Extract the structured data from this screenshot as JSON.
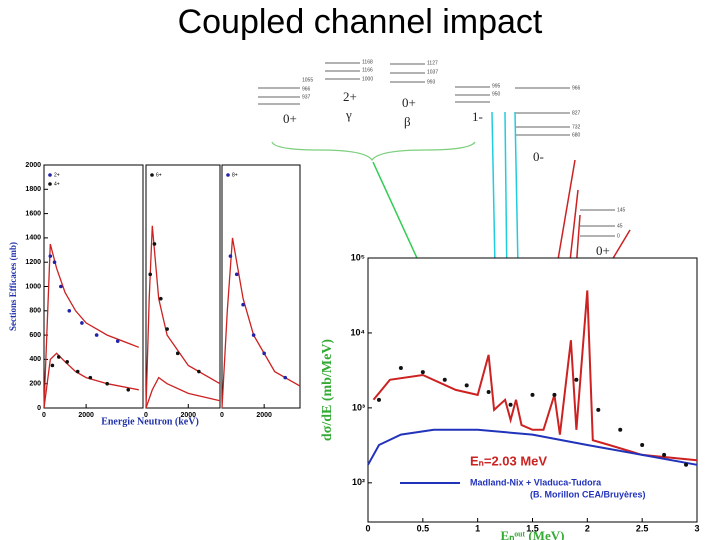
{
  "title": "Coupled channel impact",
  "levels": {
    "labels": [
      "0+",
      "2+",
      "γ",
      "0+",
      "β",
      "1-",
      "0-",
      "0+"
    ],
    "energies": [
      "1168",
      "1166",
      "1127",
      "1055",
      "1037",
      "1000",
      "966",
      "937",
      "993",
      "995",
      "966",
      "950",
      "827",
      "732",
      "680",
      "145",
      "45",
      "0"
    ]
  },
  "chart_data": [
    {
      "type": "line",
      "xlim": [
        0,
        4700
      ],
      "xticks": [
        0,
        2000
      ],
      "ylim": [
        0,
        2000
      ],
      "yticks": [
        0,
        200,
        400,
        600,
        800,
        1000,
        1200,
        1400,
        1600,
        1800,
        2000
      ],
      "ylabel": "Sections Efficaces (mb)",
      "series": [
        {
          "mode": "line",
          "color": "#cc2222",
          "x": [
            0,
            300,
            600,
            1000,
            1500,
            2000,
            3000,
            4500
          ],
          "values": [
            0,
            1350,
            1150,
            950,
            800,
            700,
            600,
            500
          ]
        },
        {
          "mode": "line",
          "color": "#cc2222",
          "x": [
            0,
            300,
            600,
            1000,
            1500,
            2000,
            3000,
            4500
          ],
          "values": [
            0,
            400,
            450,
            380,
            300,
            250,
            200,
            150
          ]
        },
        {
          "mode": "markers",
          "name": "2+",
          "color": "#2222aa",
          "x": [
            300,
            500,
            800,
            1200,
            1800,
            2500,
            3500
          ],
          "values": [
            1250,
            1200,
            1000,
            800,
            700,
            600,
            550
          ]
        },
        {
          "mode": "markers",
          "name": "4+",
          "color": "#111111",
          "x": [
            400,
            700,
            1100,
            1600,
            2200,
            3000,
            4000
          ],
          "values": [
            350,
            420,
            380,
            300,
            250,
            200,
            150
          ]
        }
      ]
    },
    {
      "type": "line",
      "xlim": [
        0,
        3500
      ],
      "xticks": [
        0,
        2000
      ],
      "ylim": [
        0,
        2000
      ],
      "xlabel": "Energie Neutron (keV)",
      "series": [
        {
          "mode": "line",
          "color": "#cc2222",
          "x": [
            0,
            150,
            300,
            600,
            1000,
            2000,
            3500
          ],
          "values": [
            0,
            900,
            1500,
            900,
            600,
            350,
            200
          ]
        },
        {
          "mode": "line",
          "color": "#cc2222",
          "x": [
            0,
            300,
            600,
            1000,
            2000,
            3500
          ],
          "values": [
            0,
            150,
            250,
            200,
            120,
            60
          ]
        },
        {
          "mode": "markers",
          "name": "6+",
          "color": "#111111",
          "x": [
            200,
            400,
            700,
            1000,
            1500,
            2500
          ],
          "values": [
            1100,
            1350,
            900,
            650,
            450,
            300
          ]
        }
      ]
    },
    {
      "type": "line",
      "xlim": [
        0,
        3700
      ],
      "xticks": [
        0,
        2000
      ],
      "ylim": [
        0,
        2000
      ],
      "series": [
        {
          "mode": "line",
          "color": "#cc2222",
          "x": [
            0,
            250,
            500,
            1000,
            1500,
            2500,
            3700
          ],
          "values": [
            0,
            800,
            1400,
            900,
            600,
            300,
            180
          ]
        },
        {
          "mode": "markers",
          "name": "8+",
          "color": "#2222aa",
          "x": [
            400,
            700,
            1000,
            1500,
            2000,
            3000
          ],
          "values": [
            1250,
            1100,
            850,
            600,
            450,
            250
          ]
        }
      ]
    },
    {
      "type": "line",
      "log": true,
      "xlim": [
        0,
        3
      ],
      "xticks": [
        0,
        0.5,
        1,
        1.5,
        2,
        2.5,
        3
      ],
      "ylim": [
        30,
        100000
      ],
      "yticks": [
        {
          "value": 100,
          "label": "10²"
        },
        {
          "value": 1000,
          "label": "10³"
        },
        {
          "value": 10000,
          "label": "10⁴"
        },
        {
          "value": 100000,
          "label": "10⁵"
        }
      ],
      "xlabel": "Eₙᵒᵘᵗ (MeV)",
      "ylabel": "dσ/dE (mb/MeV)",
      "annotations": [
        "Eₙ=2.03 MeV",
        "(B. Morillon CEA/Bruyères)"
      ],
      "series": [
        {
          "mode": "line",
          "color": "#cc2222",
          "x": [
            0.05,
            0.2,
            0.5,
            0.8,
            1.0,
            1.1,
            1.15,
            1.25,
            1.3,
            1.35,
            1.4,
            1.5,
            1.6,
            1.7,
            1.75,
            1.85,
            1.9,
            2.0,
            2.05,
            2.2,
            2.5,
            3.0
          ],
          "values": [
            1280,
            2370,
            2750,
            1740,
            1490,
            5100,
            940,
            1280,
            690,
            1280,
            590,
            510,
            510,
            1490,
            440,
            8000,
            510,
            37000,
            370,
            320,
            236,
            200
          ]
        },
        {
          "mode": "line",
          "name": "Madland-Nix + Vladuca-Tudora",
          "color": "#2233bb",
          "x": [
            0,
            0.1,
            0.3,
            0.6,
            1.0,
            1.5,
            2.0,
            2.5,
            3.0
          ],
          "values": [
            174,
            320,
            440,
            510,
            510,
            440,
            320,
            236,
            174
          ]
        },
        {
          "mode": "markers",
          "color": "#111111",
          "x": [
            0.1,
            0.3,
            0.5,
            0.7,
            0.9,
            1.1,
            1.3,
            1.5,
            1.7,
            1.9,
            2.1,
            2.3,
            2.5,
            2.7,
            2.9
          ],
          "values": [
            1280,
            3400,
            3000,
            2370,
            2000,
            1630,
            1100,
            1490,
            1490,
            2370,
            940,
            510,
            320,
            236,
            174
          ]
        }
      ]
    }
  ]
}
